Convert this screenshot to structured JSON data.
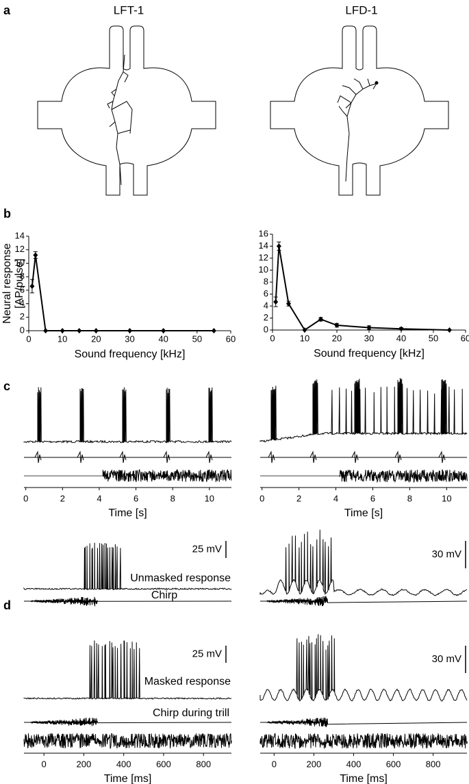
{
  "panel_labels": [
    "a",
    "b",
    "c",
    "d"
  ],
  "neurons": [
    "LFT-1",
    "LFD-1"
  ],
  "chart_data": [
    {
      "type": "line",
      "ylabel": [
        "Neural response",
        "[AP/pulse]"
      ],
      "xlabel": "Sound frequency [kHz]",
      "x": [
        1,
        2,
        5,
        10,
        15,
        20,
        30,
        40,
        55
      ],
      "values": [
        6.6,
        11.2,
        0,
        0,
        0,
        0,
        0,
        0,
        0
      ],
      "errors": [
        1.0,
        0.5,
        null,
        null,
        null,
        null,
        null,
        null,
        null
      ],
      "xlim": [
        0,
        60
      ],
      "ylim": [
        0,
        14
      ],
      "xticks": [
        0,
        10,
        20,
        30,
        40,
        50,
        60
      ],
      "yticks": [
        0,
        2,
        4,
        6,
        8,
        10,
        12,
        14
      ],
      "color": "#000000"
    },
    {
      "type": "line",
      "xlabel": "Sound frequency [kHz]",
      "x": [
        1,
        2,
        5,
        10,
        15,
        20,
        30,
        40,
        55
      ],
      "values": [
        4.7,
        14.0,
        4.4,
        0,
        1.8,
        0.8,
        0.4,
        0.2,
        0
      ],
      "errors": [
        0.8,
        0.7,
        0.4,
        null,
        0.3,
        0.3,
        0.3,
        0.2,
        null
      ],
      "xlim": [
        0,
        60
      ],
      "ylim": [
        0,
        16
      ],
      "xticks": [
        0,
        10,
        20,
        30,
        40,
        50,
        60
      ],
      "yticks": [
        0,
        2,
        4,
        6,
        8,
        10,
        12,
        14,
        16
      ],
      "color": "#000000"
    },
    {
      "type": "trace",
      "xlabel": "Time [s]",
      "xlim": [
        -0.1,
        11.2
      ],
      "xticks": [
        0,
        2,
        4,
        6,
        8,
        10
      ]
    },
    {
      "type": "trace",
      "xlabel": "Time [s]",
      "xlim": [
        -0.1,
        11.1
      ],
      "xticks": [
        0,
        2,
        4,
        6,
        8,
        10
      ]
    },
    {
      "type": "trace",
      "xlabel": "Time [ms]",
      "xlim": [
        -100,
        940
      ],
      "xticks": [
        0,
        200,
        400,
        600,
        800
      ],
      "scale_bars": [
        "25 mV",
        "25 mV"
      ],
      "labels": [
        "Unmasked response",
        "Chirp",
        "Masked response",
        "Chirp during trill"
      ]
    },
    {
      "type": "trace",
      "xlabel": "Time [ms]",
      "xlim": [
        -70,
        970
      ],
      "xticks": [
        0,
        200,
        400,
        600,
        800
      ],
      "scale_bars": [
        "30 mV",
        "30 mV"
      ]
    }
  ]
}
